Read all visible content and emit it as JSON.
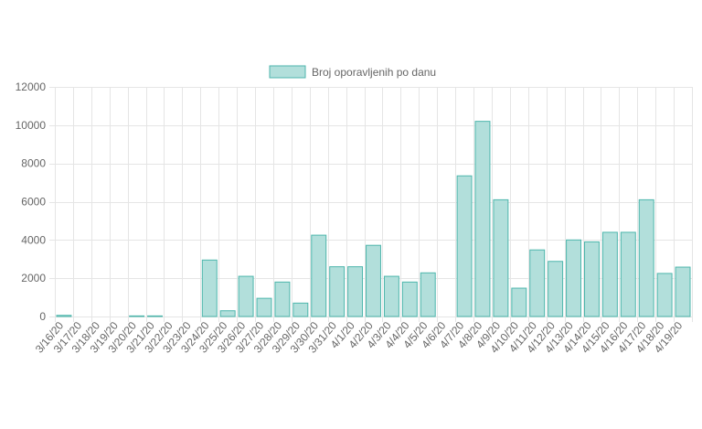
{
  "chart_data": {
    "type": "bar",
    "legend": "Broj oporavljenih po danu",
    "categories": [
      "3/16/20",
      "3/17/20",
      "3/18/20",
      "3/19/20",
      "3/20/20",
      "3/21/20",
      "3/22/20",
      "3/23/20",
      "3/24/20",
      "3/25/20",
      "3/26/20",
      "3/27/20",
      "3/28/20",
      "3/29/20",
      "3/30/20",
      "3/31/20",
      "4/1/20",
      "4/2/20",
      "4/3/20",
      "4/4/20",
      "4/5/20",
      "4/6/20",
      "4/7/20",
      "4/8/20",
      "4/9/20",
      "4/10/20",
      "4/11/20",
      "4/12/20",
      "4/13/20",
      "4/14/20",
      "4/15/20",
      "4/16/20",
      "4/17/20",
      "4/18/20",
      "4/19/20"
    ],
    "series": [
      {
        "name": "Broj oporavljenih po danu",
        "values": [
          60,
          0,
          0,
          0,
          30,
          30,
          0,
          0,
          2950,
          300,
          2100,
          950,
          1800,
          700,
          4250,
          2600,
          2600,
          3720,
          2100,
          1800,
          2280,
          0,
          7350,
          10200,
          6100,
          1480,
          3480,
          2880,
          4000,
          3900,
          4400,
          4400,
          6100,
          2250,
          2580
        ]
      }
    ],
    "y_ticks": [
      "0",
      "2000",
      "4000",
      "6000",
      "8000",
      "10000",
      "12000"
    ],
    "ylim": [
      0,
      12000
    ],
    "grid": true,
    "legend_position": "top-center",
    "colors": {
      "bar_fill": "#b2dfdb",
      "bar_border": "#4db6ac",
      "grid": "#e5e5e5",
      "axis_text": "#666666"
    }
  }
}
